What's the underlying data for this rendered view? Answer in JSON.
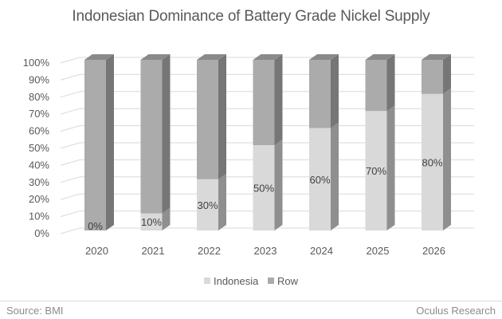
{
  "chart_data": {
    "type": "bar",
    "stacked": true,
    "percent_stacked": true,
    "three_d": true,
    "title": "Indonesian Dominance of Battery Grade Nickel Supply",
    "xlabel": "",
    "ylabel": "",
    "ylim": [
      0,
      100
    ],
    "yticks": [
      "0%",
      "10%",
      "20%",
      "30%",
      "40%",
      "50%",
      "60%",
      "70%",
      "80%",
      "90%",
      "100%"
    ],
    "categories": [
      "2020",
      "2021",
      "2022",
      "2023",
      "2024",
      "2025",
      "2026"
    ],
    "series": [
      {
        "name": "Indonesia",
        "values": [
          0,
          10,
          30,
          50,
          60,
          70,
          80
        ],
        "color": "#d9d9d9"
      },
      {
        "name": "Row",
        "values": [
          100,
          90,
          70,
          50,
          40,
          30,
          20
        ],
        "color": "#ababab"
      }
    ],
    "data_labels": [
      "0%",
      "10%",
      "30%",
      "50%",
      "60%",
      "70%",
      "80%"
    ],
    "grid": true,
    "legend_position": "bottom"
  },
  "legend": {
    "items": [
      {
        "label": "Indonesia",
        "color": "#d9d9d9"
      },
      {
        "label": "Row",
        "color": "#ababab"
      }
    ]
  },
  "footer": {
    "source": "Source: BMI",
    "attribution": "Oculus Research"
  }
}
